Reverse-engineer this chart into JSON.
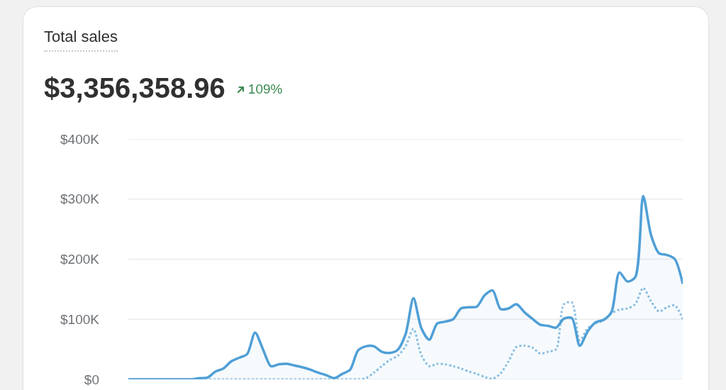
{
  "chart_data": {
    "type": "line",
    "title": "Total sales",
    "subtitle": "$3,356,358.96",
    "annotations": [
      "109%"
    ],
    "categories": [
      null,
      null,
      null,
      null,
      null,
      null,
      null,
      null,
      null,
      null,
      null,
      null,
      null,
      null,
      null,
      null,
      null,
      null,
      null,
      null,
      null,
      null,
      null,
      null,
      null,
      null,
      null,
      null,
      null,
      null,
      null,
      null,
      null,
      null,
      null,
      null,
      null,
      null,
      null,
      null,
      null,
      null,
      null,
      null,
      null,
      null,
      null,
      null,
      null,
      null,
      null,
      null,
      null,
      null,
      null,
      null,
      null,
      null,
      null,
      null,
      null,
      null,
      null,
      null,
      null,
      null,
      null,
      null,
      null,
      null,
      null
    ],
    "series": [
      {
        "type": "area",
        "color": "#4f9fd6",
        "line_style": "solid",
        "values": [
          0,
          0,
          0,
          0,
          0,
          0,
          0,
          0,
          0,
          2000,
          3000,
          13000,
          18000,
          30000,
          36000,
          42000,
          78000,
          50000,
          22000,
          25000,
          26000,
          23000,
          20000,
          16000,
          11000,
          7000,
          2000,
          9000,
          16000,
          48000,
          55000,
          55000,
          46000,
          44000,
          49000,
          75000,
          135000,
          85000,
          66000,
          93000,
          96000,
          100000,
          118000,
          120000,
          121000,
          140000,
          148000,
          117000,
          118000,
          125000,
          112000,
          101000,
          91000,
          89000,
          86000,
          101000,
          102000,
          56000,
          80000,
          95000,
          99000,
          112000,
          178000,
          163000,
          170000,
          305000,
          240000,
          210000,
          207000,
          200000,
          159000
        ]
      },
      {
        "type": "line",
        "color": "#8dc0e2",
        "line_style": "dotted",
        "values": [
          0,
          0,
          0,
          0,
          0,
          0,
          0,
          0,
          0,
          0,
          0,
          0,
          0,
          0,
          0,
          0,
          0,
          0,
          0,
          0,
          0,
          0,
          0,
          0,
          0,
          0,
          0,
          0,
          0,
          0,
          2000,
          11000,
          22000,
          32000,
          39000,
          55000,
          84000,
          40000,
          22000,
          26000,
          25000,
          22000,
          18000,
          13000,
          9000,
          4000,
          1000,
          10000,
          30000,
          54000,
          56000,
          53000,
          43000,
          46000,
          50000,
          125000,
          128000,
          65000,
          85000,
          93000,
          98000,
          110000,
          116000,
          118000,
          125000,
          152000,
          130000,
          113000,
          120000,
          123000,
          100000
        ]
      }
    ],
    "ylim": [
      0,
      400000
    ],
    "yticks": [
      {
        "value": 0,
        "label": "$0"
      },
      {
        "value": 100000,
        "label": "$100K"
      },
      {
        "value": 200000,
        "label": "$200K"
      },
      {
        "value": 300000,
        "label": "$300K"
      },
      {
        "value": 400000,
        "label": "$400K"
      }
    ],
    "grid": "y",
    "tick_labels": "y",
    "marker": "none"
  }
}
